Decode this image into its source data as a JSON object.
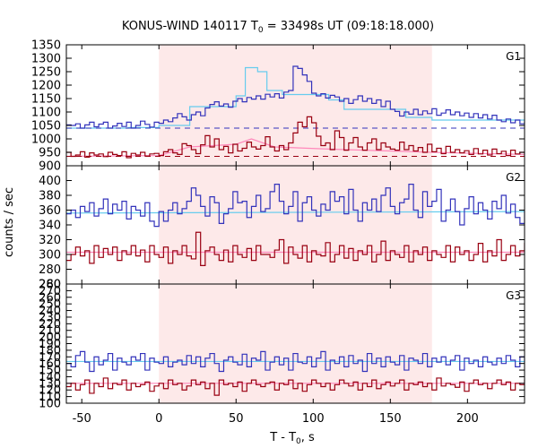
{
  "chart_data": {
    "type": "line",
    "title": "KONUS-WIND 140117 T₀ = 33498s UT (09:18:18.000)",
    "title_main": "KONUS-WIND 140117 T",
    "title_sub": "0",
    "title_rest": " = 33498s UT (09:18:18.000)",
    "xlabel_main": "T - T",
    "xlabel_sub": "0",
    "xlabel_rest": ", s",
    "ylabel": "counts / sec",
    "xlim": [
      -60,
      237
    ],
    "xticks": [
      -50,
      0,
      50,
      100,
      150,
      200
    ],
    "shaded_interval": [
      0,
      177
    ],
    "colors": {
      "series_a": "#3333bb",
      "series_b": "#990011",
      "fit_a": "#66ccee",
      "fit_b": "#ff88bb",
      "shade": "#fde9e9"
    },
    "panels": [
      {
        "label": "G1",
        "ylim": [
          900,
          1350
        ],
        "yticks": [
          900,
          950,
          1000,
          1050,
          1100,
          1150,
          1200,
          1250,
          1300,
          1350
        ],
        "bin": 3.0,
        "x0": -60,
        "series": [
          {
            "values": [
              1052,
              1050,
              1056,
              1040,
              1052,
              1062,
              1045,
              1055,
              1062,
              1040,
              1048,
              1058,
              1046,
              1062,
              1040,
              1050,
              1066,
              1054,
              1044,
              1062,
              1058,
              1070,
              1064,
              1078,
              1094,
              1082,
              1070,
              1090,
              1100,
              1086,
              1115,
              1128,
              1138,
              1122,
              1130,
              1118,
              1140,
              1150,
              1138,
              1154,
              1148,
              1160,
              1148,
              1166,
              1156,
              1168,
              1152,
              1174,
              1180,
              1270,
              1262,
              1238,
              1214,
              1170,
              1160,
              1168,
              1152,
              1162,
              1156,
              1140,
              1150,
              1132,
              1146,
              1160,
              1140,
              1150,
              1132,
              1145,
              1120,
              1140,
              1110,
              1102,
              1085,
              1100,
              1092,
              1110,
              1090,
              1104,
              1094,
              1112,
              1088,
              1096,
              1108,
              1090,
              1100,
              1086,
              1096,
              1080,
              1094,
              1078,
              1090,
              1074,
              1088,
              1070,
              1064,
              1074,
              1060,
              1070,
              1056,
              1062,
              1052,
              1066,
              1054,
              1058,
              1062,
              1050,
              1056,
              1060,
              1048,
              1046
            ],
            "fit": [
              [
                -60,
                1040
              ],
              [
                -20,
                1042
              ],
              [
                0,
                1050
              ],
              [
                20,
                1120
              ],
              [
                50,
                1160
              ],
              [
                56,
                1265
              ],
              [
                64,
                1250
              ],
              [
                70,
                1180
              ],
              [
                80,
                1165
              ],
              [
                110,
                1145
              ],
              [
                120,
                1110
              ],
              [
                160,
                1080
              ],
              [
                177,
                1070
              ],
              [
                237,
                1052
              ]
            ],
            "fit_style": "step",
            "background": 1040
          },
          {
            "values": [
              950,
              935,
              940,
              952,
              932,
              948,
              940,
              944,
              934,
              950,
              942,
              938,
              952,
              930,
              946,
              940,
              950,
              936,
              944,
              946,
              938,
              952,
              960,
              948,
              942,
              982,
              975,
              960,
              945,
              978,
              1012,
              970,
              1000,
              960,
              972,
              948,
              980,
              955,
              965,
              988,
              970,
              962,
              975,
              1008,
              970,
              955,
              975,
              960,
              985,
              1022,
              1062,
              1045,
              1082,
              1060,
              1010,
              975,
              985,
              960,
              1030,
              1005,
              958,
              985,
              1005,
              970,
              958,
              985,
              1000,
              960,
              985,
              970,
              962,
              958,
              988,
              960,
              975,
              955,
              968,
              950,
              980,
              952,
              965,
              945,
              972,
              950,
              960,
              948,
              956,
              942,
              964,
              944,
              958,
              940,
              962,
              945,
              954,
              938,
              958,
              944,
              950,
              936,
              955,
              940,
              948,
              945,
              936,
              950,
              940,
              946,
              934,
              942
            ],
            "fit": [
              [
                -60,
                935
              ],
              [
                0,
                938
              ],
              [
                20,
                970
              ],
              [
                50,
                980
              ],
              [
                60,
                1000
              ],
              [
                75,
                970
              ],
              [
                110,
                962
              ],
              [
                150,
                955
              ],
              [
                177,
                950
              ],
              [
                237,
                942
              ]
            ],
            "fit_style": "line",
            "background": 935
          }
        ]
      },
      {
        "label": "G2",
        "ylim": [
          260,
          420
        ],
        "yticks": [
          260,
          280,
          300,
          320,
          340,
          360,
          380,
          400
        ],
        "bin": 3.0,
        "x0": -60,
        "series": [
          {
            "values": [
              355,
              360,
              350,
              365,
              358,
              370,
              352,
              362,
              375,
              355,
              368,
              360,
              372,
              348,
              365,
              360,
              352,
              370,
              345,
              338,
              358,
              345,
              360,
              370,
              355,
              362,
              372,
              390,
              380,
              365,
              352,
              378,
              370,
              342,
              355,
              362,
              385,
              370,
              372,
              350,
              365,
              380,
              358,
              362,
              385,
              395,
              372,
              355,
              365,
              385,
              345,
              370,
              378,
              360,
              352,
              368,
              360,
              385,
              372,
              378,
              355,
              388,
              360,
              345,
              370,
              360,
              375,
              358,
              380,
              390,
              365,
              355,
              370,
              375,
              395,
              360,
              350,
              385,
              365,
              372,
              388,
              345,
              360,
              375,
              358,
              340,
              362,
              378,
              355,
              370,
              360,
              348,
              372,
              362,
              380,
              356,
              368,
              350,
              342,
              360,
              358,
              372,
              362,
              345,
              374,
              352,
              360,
              354,
              370,
              348
            ],
            "fit": [
              [
                -60,
                356
              ],
              [
                237,
                358
              ]
            ],
            "fit_style": "line"
          },
          {
            "values": [
              292,
              300,
              310,
              298,
              305,
              288,
              312,
              296,
              308,
              300,
              310,
              292,
              305,
              300,
              312,
              298,
              306,
              290,
              312,
              300,
              296,
              310,
              288,
              305,
              300,
              312,
              298,
              294,
              330,
              285,
              305,
              310,
              300,
              292,
              306,
              290,
              312,
              300,
              296,
              308,
              292,
              312,
              300,
              300,
              296,
              306,
              320,
              288,
              310,
              300,
              295,
              312,
              290,
              305,
              300,
              298,
              316,
              290,
              300,
              312,
              295,
              308,
              292,
              305,
              300,
              312,
              290,
              300,
              318,
              292,
              305,
              300,
              296,
              312,
              290,
              305,
              300,
              310,
              292,
              305,
              300,
              296,
              312,
              290,
              310,
              300,
              305,
              292,
              300,
              315,
              290,
              305,
              298,
              320,
              292,
              300,
              312,
              298,
              305,
              315,
              300,
              334,
              296,
              305,
              290,
              310,
              300,
              296,
              305,
              300
            ],
            "fit": [
              [
                -60,
                303
              ],
              [
                237,
                303
              ]
            ],
            "fit_style": "line"
          }
        ]
      },
      {
        "label": "G3",
        "ylim": [
          100,
          280
        ],
        "yticks": [
          100,
          110,
          120,
          130,
          140,
          150,
          160,
          170,
          180,
          190,
          200,
          210,
          220,
          230,
          240,
          250,
          260,
          270,
          280
        ],
        "bin": 3.0,
        "x0": -60,
        "series": [
          {
            "values": [
              160,
              155,
              172,
              178,
              162,
              148,
              170,
              158,
              165,
              175,
              150,
              168,
              162,
              158,
              170,
              165,
              175,
              150,
              168,
              162,
              160,
              170,
              155,
              162,
              165,
              158,
              172,
              160,
              170,
              155,
              168,
              175,
              160,
              148,
              165,
              170,
              162,
              158,
              174,
              155,
              168,
              165,
              178,
              150,
              162,
              170,
              158,
              168,
              150,
              175,
              162,
              160,
              170,
              155,
              168,
              178,
              150,
              165,
              160,
              170,
              155,
              172,
              160,
              165,
              148,
              175,
              160,
              168,
              155,
              170,
              162,
              158,
              172,
              150,
              168,
              165,
              160,
              175,
              155,
              168,
              162,
              170,
              158,
              165,
              172,
              150,
              168,
              160,
              165,
              155,
              170,
              162,
              158,
              168,
              160,
              172,
              165,
              155,
              170,
              160,
              158,
              168,
              162,
              165,
              172,
              158,
              165,
              170,
              160,
              165
            ],
            "fit": [
              [
                -60,
                163
              ],
              [
                237,
                163
              ]
            ],
            "fit_style": "line"
          },
          {
            "values": [
              125,
              130,
              120,
              128,
              135,
              115,
              130,
              125,
              138,
              122,
              130,
              128,
              135,
              120,
              130,
              125,
              128,
              132,
              118,
              126,
              130,
              122,
              135,
              128,
              130,
              120,
              126,
              135,
              128,
              132,
              122,
              130,
              112,
              135,
              128,
              130,
              125,
              132,
              118,
              130,
              135,
              128,
              125,
              130,
              132,
              120,
              130,
              128,
              135,
              122,
              130,
              118,
              128,
              135,
              130,
              125,
              130,
              120,
              128,
              135,
              130,
              126,
              132,
              120,
              130,
              125,
              135,
              122,
              128,
              132,
              126,
              130,
              135,
              120,
              130,
              128,
              132,
              125,
              130,
              120,
              138,
              126,
              130,
              128,
              124,
              132,
              118,
              130,
              135,
              128,
              130,
              122,
              130,
              135,
              128,
              132,
              120,
              130,
              128,
              135,
              122,
              130,
              128,
              138,
              142,
              132,
              125,
              136,
              128,
              130
            ],
            "fit": [
              [
                -60,
                130
              ],
              [
                237,
                130
              ]
            ],
            "fit_style": "line"
          }
        ]
      }
    ]
  }
}
